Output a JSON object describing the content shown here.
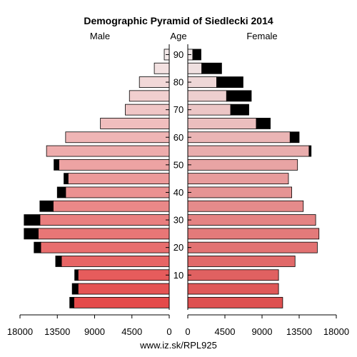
{
  "chart_data": {
    "type": "bar",
    "title": "Demographic Pyramid of Siedlecki 2014",
    "left_label": "Male",
    "center_label": "Age",
    "right_label": "Female",
    "footer": "www.iz.sk/RPL925",
    "age_ticks": [
      "10",
      "20",
      "30",
      "40",
      "50",
      "60",
      "70",
      "80",
      "90"
    ],
    "x_ticks_left": [
      "18000",
      "13500",
      "9000",
      "4500",
      "0"
    ],
    "x_ticks_right": [
      "0",
      "4500",
      "9000",
      "13500",
      "18000"
    ],
    "xlim": [
      0,
      18000
    ],
    "categories": [
      "0-4",
      "5-9",
      "10-14",
      "15-19",
      "20-24",
      "25-29",
      "30-34",
      "35-39",
      "40-44",
      "45-49",
      "50-54",
      "55-59",
      "60-64",
      "65-69",
      "70-74",
      "75-79",
      "80-84",
      "85-89",
      "90+"
    ],
    "series": [
      {
        "name": "Male",
        "base": [
          11500,
          11000,
          11000,
          13000,
          15500,
          15800,
          15600,
          14000,
          12500,
          12200,
          13300,
          14800,
          12500,
          8300,
          5300,
          4800,
          3600,
          1800,
          600
        ],
        "excess": [
          500,
          700,
          400,
          700,
          800,
          1700,
          1900,
          1600,
          1000,
          500,
          600,
          0,
          0,
          0,
          0,
          0,
          0,
          0,
          0
        ]
      },
      {
        "name": "Female",
        "base": [
          11500,
          11000,
          11000,
          13000,
          15700,
          15900,
          15500,
          14000,
          12600,
          12200,
          13300,
          14700,
          12400,
          8300,
          5200,
          4700,
          3500,
          1700,
          600
        ],
        "excess": [
          0,
          0,
          0,
          0,
          0,
          0,
          0,
          0,
          0,
          0,
          0,
          250,
          1100,
          1700,
          2200,
          3000,
          3200,
          2400,
          1000
        ]
      }
    ]
  }
}
